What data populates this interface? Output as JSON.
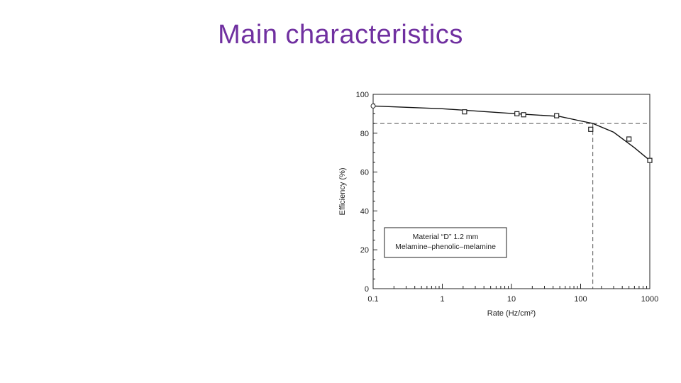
{
  "slide": {
    "title": "Main characteristics"
  },
  "chart_data": {
    "type": "line",
    "x_scale": "log",
    "xlim": [
      0.1,
      1000
    ],
    "ylim": [
      0,
      100
    ],
    "x_ticks": [
      0.1,
      1,
      10,
      100,
      1000
    ],
    "x_tick_labels": [
      "0.1",
      "1",
      "10",
      "100",
      "1000"
    ],
    "y_ticks": [
      0,
      20,
      40,
      60,
      80,
      100
    ],
    "y_tick_labels": [
      "0",
      "20",
      "40",
      "60",
      "80",
      "100"
    ],
    "xlabel": "Rate (Hz/cm²)",
    "ylabel": "Efficiency (%)",
    "legend": {
      "placement": "lower-left",
      "lines": [
        "Material “D” 1.2 mm",
        "Melamine–phenolic–melamine"
      ]
    },
    "series": [
      {
        "points": [
          {
            "x": 0.1,
            "y": 94
          },
          {
            "x": 2.1,
            "y": 91
          },
          {
            "x": 12,
            "y": 90
          },
          {
            "x": 15,
            "y": 89.5
          },
          {
            "x": 45,
            "y": 89
          },
          {
            "x": 140,
            "y": 82
          },
          {
            "x": 500,
            "y": 77
          },
          {
            "x": 1000,
            "y": 66
          }
        ],
        "fit_curve": [
          {
            "x": 0.1,
            "y": 94
          },
          {
            "x": 1,
            "y": 92.6
          },
          {
            "x": 10,
            "y": 90.2
          },
          {
            "x": 50,
            "y": 88.6
          },
          {
            "x": 100,
            "y": 86.3
          },
          {
            "x": 150,
            "y": 85
          },
          {
            "x": 300,
            "y": 80.5
          },
          {
            "x": 600,
            "y": 72.5
          },
          {
            "x": 1000,
            "y": 66
          }
        ]
      }
    ],
    "reference_lines": {
      "y": 85,
      "x": 150
    }
  }
}
